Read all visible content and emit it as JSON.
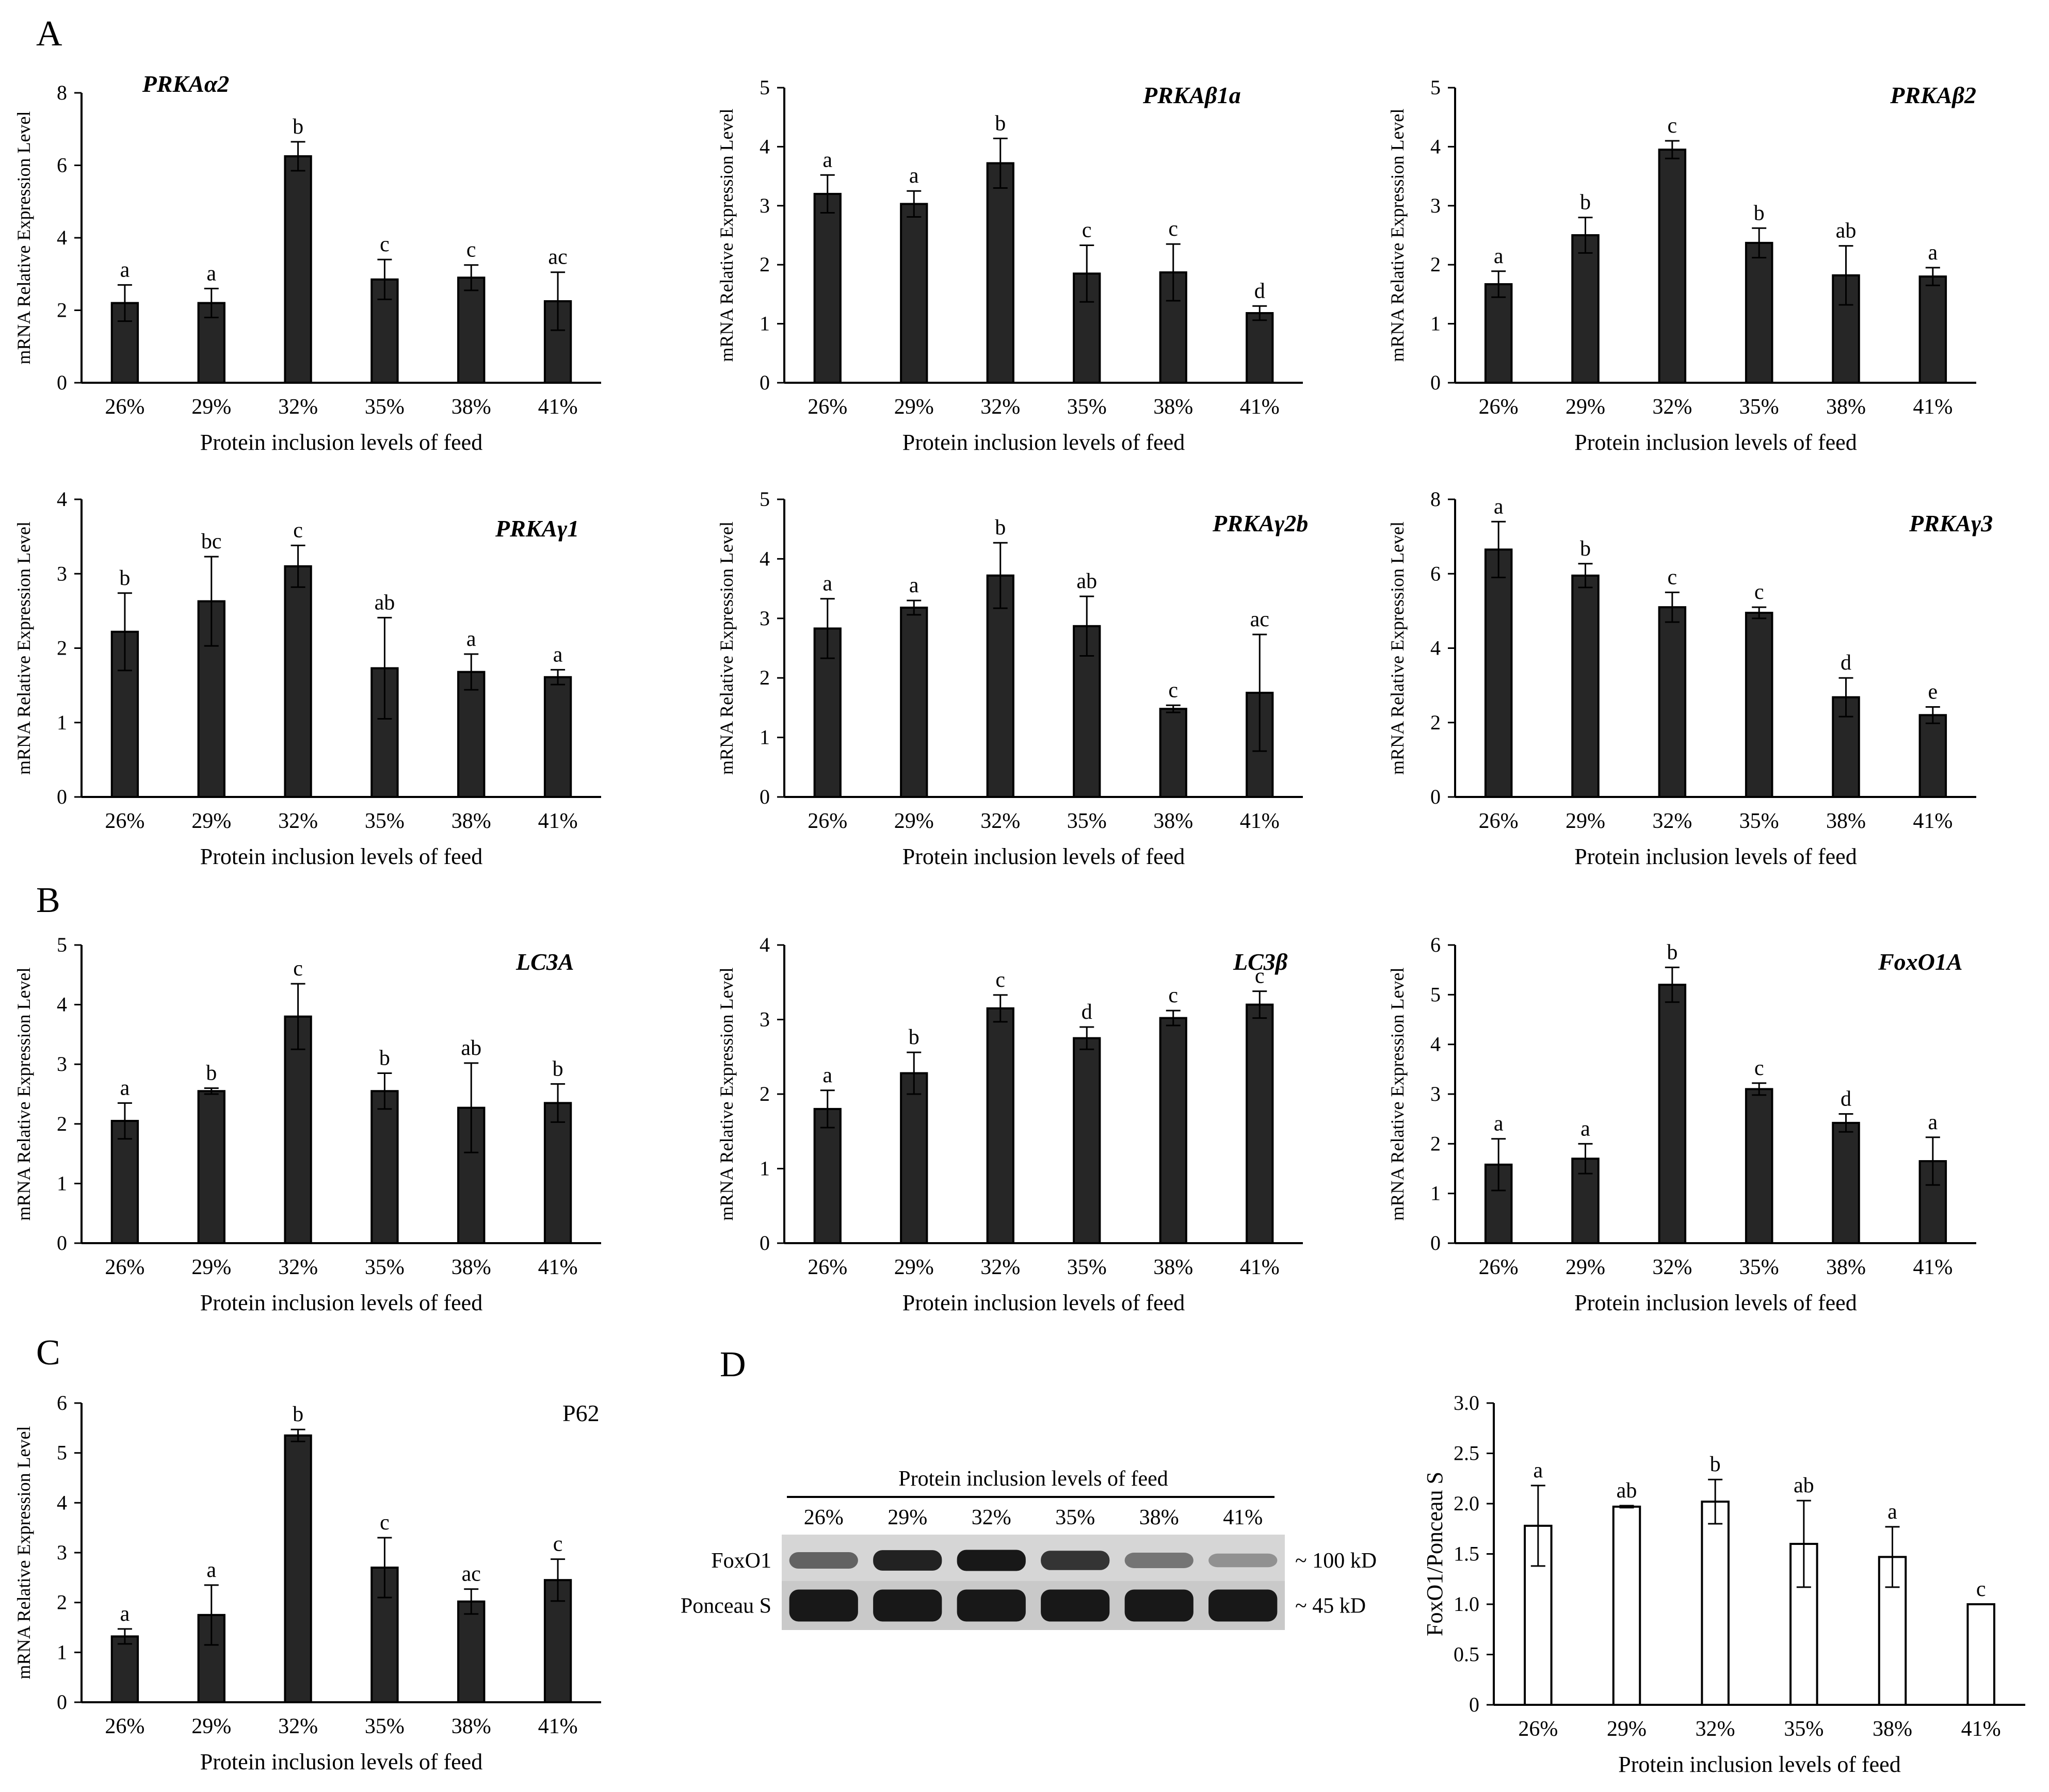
{
  "panel_letters": {
    "A": "A",
    "B": "B",
    "C": "C",
    "D": "D"
  },
  "chart_data": [
    {
      "id": "prkaa2",
      "type": "bar",
      "title": "PRKAα2",
      "title_style": "italic",
      "categories": [
        "26%",
        "29%",
        "32%",
        "35%",
        "38%",
        "41%"
      ],
      "values": [
        2.2,
        2.2,
        6.25,
        2.85,
        2.9,
        2.25
      ],
      "errors": [
        0.5,
        0.4,
        0.4,
        0.55,
        0.35,
        0.8
      ],
      "significance": [
        "a",
        "a",
        "b",
        "c",
        "c",
        "ac"
      ],
      "yticks": [
        "0",
        "2",
        "4",
        "6",
        "8"
      ],
      "ylim": [
        0,
        8
      ],
      "xlabel": "Protein inclusion levels of feed",
      "ylabel": "mRNA Relative Expression Level",
      "bar_color": "#262626"
    },
    {
      "id": "prkab1a",
      "type": "bar",
      "title": "PRKAβ1a",
      "title_style": "italic",
      "categories": [
        "26%",
        "29%",
        "32%",
        "35%",
        "38%",
        "41%"
      ],
      "values": [
        3.2,
        3.03,
        3.72,
        1.85,
        1.87,
        1.18
      ],
      "errors": [
        0.32,
        0.22,
        0.42,
        0.48,
        0.48,
        0.12
      ],
      "significance": [
        "a",
        "a",
        "b",
        "c",
        "c",
        "d"
      ],
      "yticks": [
        "0",
        "1",
        "2",
        "3",
        "4",
        "5"
      ],
      "ylim": [
        0,
        5
      ],
      "xlabel": "Protein inclusion levels of feed",
      "ylabel": "mRNA Relative Expression Level",
      "bar_color": "#262626"
    },
    {
      "id": "prkab2",
      "type": "bar",
      "title": "PRKAβ2",
      "title_style": "italic",
      "categories": [
        "26%",
        "29%",
        "32%",
        "35%",
        "38%",
        "41%"
      ],
      "values": [
        1.67,
        2.5,
        3.95,
        2.37,
        1.82,
        1.8
      ],
      "errors": [
        0.22,
        0.3,
        0.15,
        0.25,
        0.5,
        0.15
      ],
      "significance": [
        "a",
        "b",
        "c",
        "b",
        "ab",
        "a"
      ],
      "yticks": [
        "0",
        "1",
        "2",
        "3",
        "4",
        "5"
      ],
      "ylim": [
        0,
        5
      ],
      "xlabel": "Protein inclusion levels of feed",
      "ylabel": "mRNA Relative Expression Level",
      "bar_color": "#262626"
    },
    {
      "id": "prkag1",
      "type": "bar",
      "title": "PRKAγ1",
      "title_style": "italic",
      "categories": [
        "26%",
        "29%",
        "32%",
        "35%",
        "38%",
        "41%"
      ],
      "values": [
        2.22,
        2.63,
        3.1,
        1.73,
        1.68,
        1.61
      ],
      "errors": [
        0.52,
        0.6,
        0.28,
        0.68,
        0.24,
        0.1
      ],
      "significance": [
        "b",
        "bc",
        "c",
        "ab",
        "a",
        "a"
      ],
      "yticks": [
        "0",
        "1",
        "2",
        "3",
        "4"
      ],
      "ylim": [
        0,
        4
      ],
      "xlabel": "Protein inclusion levels of feed",
      "ylabel": "mRNA Relative Expression Level",
      "bar_color": "#262626"
    },
    {
      "id": "prkag2b",
      "type": "bar",
      "title": "PRKAγ2b",
      "title_style": "italic",
      "categories": [
        "26%",
        "29%",
        "32%",
        "35%",
        "38%",
        "41%"
      ],
      "values": [
        2.83,
        3.18,
        3.72,
        2.87,
        1.48,
        1.75
      ],
      "errors": [
        0.5,
        0.12,
        0.55,
        0.5,
        0.06,
        0.98
      ],
      "significance": [
        "a",
        "a",
        "b",
        "ab",
        "c",
        "ac"
      ],
      "yticks": [
        "0",
        "1",
        "2",
        "3",
        "4",
        "5"
      ],
      "ylim": [
        0,
        5
      ],
      "xlabel": "Protein inclusion levels of feed",
      "ylabel": "mRNA Relative Expression Level",
      "bar_color": "#262626"
    },
    {
      "id": "prkag3",
      "type": "bar",
      "title": "PRKAγ3",
      "title_style": "italic",
      "categories": [
        "26%",
        "29%",
        "32%",
        "35%",
        "38%",
        "41%"
      ],
      "values": [
        6.65,
        5.95,
        5.1,
        4.95,
        2.68,
        2.2
      ],
      "errors": [
        0.75,
        0.32,
        0.4,
        0.15,
        0.52,
        0.22
      ],
      "significance": [
        "a",
        "b",
        "c",
        "c",
        "d",
        "e"
      ],
      "yticks": [
        "0",
        "2",
        "4",
        "6",
        "8"
      ],
      "ylim": [
        0,
        8
      ],
      "xlabel": "Protein inclusion levels of feed",
      "ylabel": "mRNA Relative Expression Level",
      "bar_color": "#262626"
    },
    {
      "id": "lc3a",
      "type": "bar",
      "title": "LC3A",
      "title_style": "italic",
      "categories": [
        "26%",
        "29%",
        "32%",
        "35%",
        "38%",
        "41%"
      ],
      "values": [
        2.05,
        2.55,
        3.8,
        2.55,
        2.27,
        2.35
      ],
      "errors": [
        0.3,
        0.05,
        0.55,
        0.3,
        0.75,
        0.32
      ],
      "significance": [
        "a",
        "b",
        "c",
        "b",
        "ab",
        "b"
      ],
      "yticks": [
        "0",
        "1",
        "2",
        "3",
        "4",
        "5"
      ],
      "ylim": [
        0,
        5
      ],
      "xlabel": "Protein inclusion levels of feed",
      "ylabel": "mRNA Relative Expression Level",
      "bar_color": "#262626"
    },
    {
      "id": "lc3b",
      "type": "bar",
      "title": "LC3β",
      "title_style": "italic",
      "categories": [
        "26%",
        "29%",
        "32%",
        "35%",
        "38%",
        "41%"
      ],
      "values": [
        1.8,
        2.28,
        3.15,
        2.75,
        3.02,
        3.2
      ],
      "errors": [
        0.25,
        0.28,
        0.18,
        0.15,
        0.1,
        0.18
      ],
      "significance": [
        "a",
        "b",
        "c",
        "d",
        "c",
        "c"
      ],
      "yticks": [
        "0",
        "1",
        "2",
        "3",
        "4"
      ],
      "ylim": [
        0,
        4
      ],
      "xlabel": "Protein inclusion levels of feed",
      "ylabel": "mRNA Relative Expression Level",
      "bar_color": "#262626"
    },
    {
      "id": "foxo1a",
      "type": "bar",
      "title": "FoxO1A",
      "title_style": "italic",
      "categories": [
        "26%",
        "29%",
        "32%",
        "35%",
        "38%",
        "41%"
      ],
      "values": [
        1.58,
        1.7,
        5.2,
        3.1,
        2.42,
        1.65
      ],
      "errors": [
        0.52,
        0.3,
        0.35,
        0.12,
        0.18,
        0.48
      ],
      "significance": [
        "a",
        "a",
        "b",
        "c",
        "d",
        "a"
      ],
      "yticks": [
        "0",
        "1",
        "2",
        "3",
        "4",
        "5",
        "6"
      ],
      "ylim": [
        0,
        6
      ],
      "xlabel": "Protein inclusion levels of feed",
      "ylabel": "mRNA Relative Expression Level",
      "bar_color": "#262626"
    },
    {
      "id": "p62",
      "type": "bar",
      "title": "P62",
      "title_style": "normal",
      "categories": [
        "26%",
        "29%",
        "32%",
        "35%",
        "38%",
        "41%"
      ],
      "values": [
        1.32,
        1.75,
        5.35,
        2.7,
        2.02,
        2.45
      ],
      "errors": [
        0.15,
        0.6,
        0.12,
        0.6,
        0.25,
        0.42
      ],
      "significance": [
        "a",
        "a",
        "b",
        "c",
        "ac",
        "c"
      ],
      "yticks": [
        "0",
        "1",
        "2",
        "3",
        "4",
        "5",
        "6"
      ],
      "ylim": [
        0,
        6
      ],
      "xlabel": "Protein inclusion levels of feed",
      "ylabel": "mRNA Relative Expression Level",
      "bar_color": "#262626"
    },
    {
      "id": "foxo1_ponceau",
      "type": "bar",
      "title": "",
      "categories": [
        "26%",
        "29%",
        "32%",
        "35%",
        "38%",
        "41%"
      ],
      "values": [
        1.78,
        1.97,
        2.02,
        1.6,
        1.47,
        1.0
      ],
      "errors": [
        0.4,
        0.01,
        0.22,
        0.43,
        0.3,
        0.0
      ],
      "significance": [
        "a",
        "ab",
        "b",
        "ab",
        "a",
        "c"
      ],
      "yticks": [
        "0",
        "0.5",
        "1.0",
        "1.5",
        "2.0",
        "2.5",
        "3.0"
      ],
      "ylim": [
        0,
        3
      ],
      "xlabel": "Protein inclusion levels of feed",
      "ylabel": "FoxO1/Ponceau S",
      "bar_color": "#ffffff"
    }
  ],
  "western_blot": {
    "header": "Protein inclusion levels of feed",
    "lanes": [
      "26%",
      "29%",
      "32%",
      "35%",
      "38%",
      "41%"
    ],
    "rows": [
      {
        "label": "FoxO1",
        "size": "~ 100 kD",
        "intensities": [
          0.55,
          0.9,
          0.95,
          0.8,
          0.45,
          0.3
        ]
      },
      {
        "label": "Ponceau S",
        "size": "~ 45 kD",
        "intensities": [
          0.95,
          0.95,
          0.95,
          0.95,
          0.95,
          0.95
        ]
      }
    ]
  }
}
